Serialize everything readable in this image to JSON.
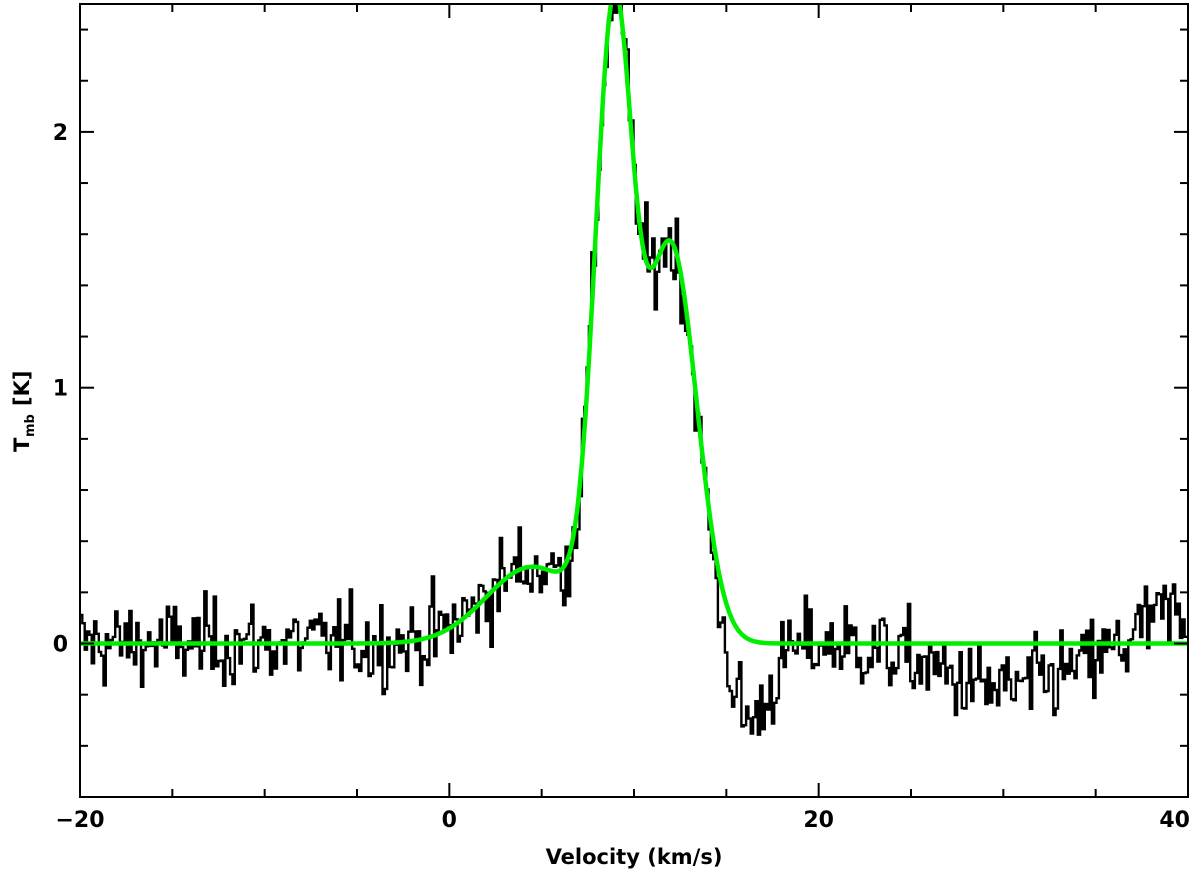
{
  "chart_data": {
    "type": "line",
    "title": "",
    "xlabel": "Velocity (km/s)",
    "ylabel_main": "T",
    "ylabel_sub": "mb",
    "ylabel_unit": "[K]",
    "xlim": [
      -20,
      40
    ],
    "ylim": [
      -0.6,
      2.5
    ],
    "x_ticks": [
      -20,
      0,
      20,
      40
    ],
    "x_tick_labels": [
      "−20",
      "0",
      "20",
      "40"
    ],
    "y_ticks": [
      0,
      1,
      2
    ],
    "y_tick_labels": [
      "0",
      "1",
      "2"
    ],
    "grid": false,
    "legend": "none",
    "series": [
      {
        "kind": "histogram-spectrum",
        "color": "#000000",
        "x_start": -20,
        "x_step": 0.127,
        "noise_rms": 0.17,
        "note_values_shape": "observed spectrum: noise around 0, rising wing near 0-7 km/s, main peak ~2.45 K at ~9 km/s, shoulder ~1.75 K at ~12 km/s, absorption dip to ~-0.4 K near 15-17 km/s, baseline noise to 40 km/s"
      },
      {
        "kind": "fit",
        "color": "#00ee00",
        "components": [
          {
            "amplitude": 0.3,
            "center": 4.5,
            "sigma": 2.5
          },
          {
            "amplitude": 2.35,
            "center": 8.9,
            "sigma": 1.0
          },
          {
            "amplitude": 1.55,
            "center": 12.0,
            "sigma": 1.4
          }
        ]
      }
    ]
  }
}
